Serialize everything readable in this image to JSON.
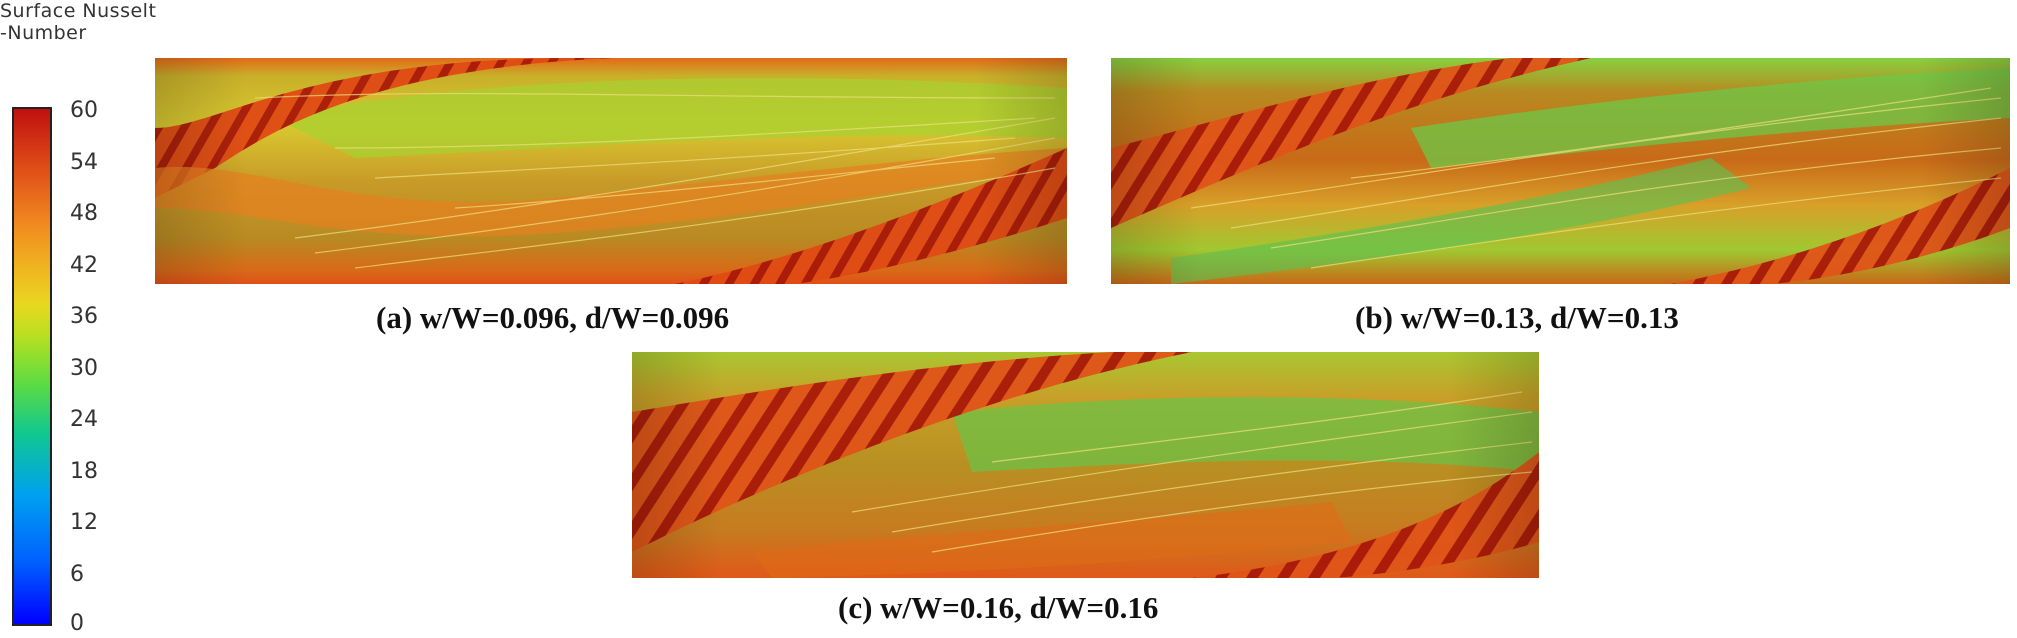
{
  "colorbar": {
    "title_line1": "Surface Nusselt",
    "title_line2": "-Number",
    "ticks": [
      "60",
      "54",
      "48",
      "42",
      "36",
      "30",
      "24",
      "18",
      "12",
      "6",
      "0"
    ],
    "min": 0,
    "max": 60,
    "colors": [
      "#0000ff",
      "#0060ff",
      "#00a0f0",
      "#10c890",
      "#60dc40",
      "#b8e020",
      "#e8d820",
      "#f0b020",
      "#f08820",
      "#e05018",
      "#c01010"
    ]
  },
  "panels": [
    {
      "caption": "(a) w/W=0.096, d/W=0.096"
    },
    {
      "caption": "(b) w/W=0.13, d/W=0.13"
    },
    {
      "caption": "(c) w/W=0.16, d/W=0.16"
    }
  ]
}
